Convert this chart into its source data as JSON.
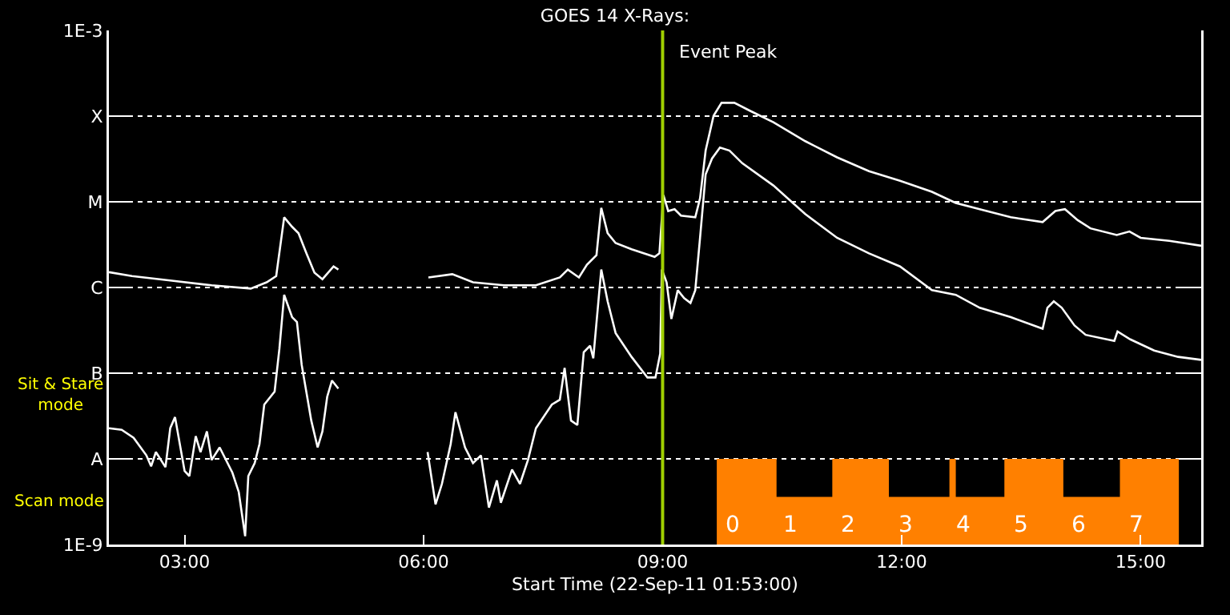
{
  "chart_data": {
    "type": "line",
    "title": "GOES 14 X-Rays:",
    "xlabel": "Start Time (22-Sep-11 01:53:00)",
    "log": true,
    "grid": "y",
    "line_style": "solid",
    "marker": "none",
    "xlim": [
      2.05,
      15.76
    ],
    "xticks": [
      {
        "value": 3,
        "label": "03:00"
      },
      {
        "value": 6,
        "label": "06:00"
      },
      {
        "value": 9,
        "label": "09:00"
      },
      {
        "value": 12,
        "label": "12:00"
      },
      {
        "value": 15,
        "label": "15:00"
      }
    ],
    "ylim": [
      1e-09,
      0.001
    ],
    "yticks": [
      {
        "value": 1e-09,
        "label": "1E-9"
      },
      {
        "value": 1e-08,
        "label": "A"
      },
      {
        "value": 1e-07,
        "label": "B"
      },
      {
        "value": 1e-06,
        "label": "C"
      },
      {
        "value": 1e-05,
        "label": "M"
      },
      {
        "value": 0.0001,
        "label": "X"
      },
      {
        "value": 0.001,
        "label": "1E-3"
      }
    ],
    "series": [
      {
        "color": "#ffffff",
        "x": [
          2.05,
          2.34,
          2.84,
          3.34,
          3.83,
          4.03,
          4.15,
          4.25,
          4.35,
          4.43,
          4.53,
          4.63,
          4.73,
          4.87,
          4.93,
          5.5,
          6.06,
          6.36,
          6.62,
          7.01,
          7.41,
          7.71,
          7.81,
          7.95,
          8.05,
          8.17,
          8.23,
          8.31,
          8.41,
          8.61,
          8.9,
          8.96,
          9.01,
          9.07,
          9.15,
          9.23,
          9.41,
          9.47,
          9.54,
          9.64,
          9.74,
          9.9,
          10.1,
          10.39,
          10.79,
          11.19,
          11.59,
          11.98,
          12.38,
          12.68,
          12.98,
          13.37,
          13.77,
          13.93,
          14.05,
          14.21,
          14.37,
          14.7,
          14.86,
          15.0,
          15.36,
          15.76
        ],
        "values": [
          1.51e-06,
          1.36e-06,
          1.2e-06,
          1.06e-06,
          9.7e-07,
          1.15e-06,
          1.36e-06,
          6.6e-06,
          5.1e-06,
          4.3e-06,
          2.5e-06,
          1.49e-06,
          1.25e-06,
          1.76e-06,
          1.62e-06,
          null,
          1.31e-06,
          1.43e-06,
          1.15e-06,
          1.06e-06,
          1.06e-06,
          1.31e-06,
          1.62e-06,
          1.31e-06,
          1.84e-06,
          2.38e-06,
          8.5e-06,
          4.3e-06,
          3.3e-06,
          2.8e-06,
          2.28e-06,
          2.5e-06,
          1.2e-05,
          7.8e-06,
          8.2e-06,
          6.9e-06,
          6.6e-06,
          1.1e-05,
          3.96e-05,
          0.000101,
          0.000143,
          0.000143,
          0.000115,
          8.5e-05,
          5.1e-05,
          3.3e-05,
          2.28e-05,
          1.76e-05,
          1.31e-05,
          9.7e-06,
          8.2e-06,
          6.6e-06,
          5.8e-06,
          7.8e-06,
          8.2e-06,
          6.1e-06,
          4.9e-06,
          4.1e-06,
          4.5e-06,
          3.8e-06,
          3.5e-06,
          3.07e-06
        ]
      },
      {
        "color": "#ffffff",
        "x": [
          2.05,
          2.21,
          2.36,
          2.52,
          2.58,
          2.64,
          2.76,
          2.82,
          2.88,
          3.0,
          3.06,
          3.14,
          3.2,
          3.28,
          3.34,
          3.44,
          3.6,
          3.68,
          3.76,
          3.8,
          3.88,
          3.94,
          4.0,
          4.13,
          4.19,
          4.25,
          4.35,
          4.41,
          4.47,
          4.59,
          4.67,
          4.73,
          4.79,
          4.85,
          4.93,
          5.5,
          6.05,
          6.15,
          6.23,
          6.34,
          6.4,
          6.52,
          6.62,
          6.72,
          6.82,
          6.92,
          6.97,
          7.11,
          7.21,
          7.31,
          7.41,
          7.61,
          7.71,
          7.77,
          7.85,
          7.93,
          8.01,
          8.09,
          8.13,
          8.23,
          8.31,
          8.41,
          8.61,
          8.81,
          8.91,
          8.97,
          8.99,
          9.05,
          9.11,
          9.19,
          9.27,
          9.35,
          9.41,
          9.47,
          9.54,
          9.62,
          9.72,
          9.84,
          10.0,
          10.39,
          10.79,
          11.19,
          11.59,
          11.98,
          12.38,
          12.68,
          12.98,
          13.37,
          13.77,
          13.83,
          13.91,
          14.01,
          14.17,
          14.31,
          14.67,
          14.71,
          14.87,
          15.17,
          15.47,
          15.76
        ],
        "values": [
          2.28e-08,
          2.18e-08,
          1.76e-08,
          1.1e-08,
          8.2e-09,
          1.2e-08,
          8e-09,
          2.28e-08,
          3.07e-08,
          7.2e-09,
          6.3e-09,
          1.84e-08,
          1.2e-08,
          2.09e-08,
          9.7e-09,
          1.36e-08,
          6.9e-09,
          4.1e-09,
          1.25e-09,
          6.3e-09,
          8.9e-09,
          1.49e-08,
          4.3e-08,
          6.1e-08,
          1.92e-07,
          8.2e-07,
          4.5e-07,
          3.96e-07,
          1.25e-07,
          2.8e-08,
          1.36e-08,
          2.09e-08,
          5.3e-08,
          8.2e-08,
          6.6e-08,
          null,
          1.2e-08,
          2.94e-09,
          5.1e-09,
          1.49e-08,
          3.5e-08,
          1.36e-08,
          8.9e-09,
          1.1e-08,
          2.7e-09,
          5.6e-09,
          3.08e-09,
          7.5e-09,
          5.1e-09,
          9.7e-09,
          2.28e-08,
          4.3e-08,
          4.9e-08,
          1.15e-07,
          2.8e-08,
          2.48e-08,
          1.76e-07,
          2.09e-07,
          1.49e-07,
          1.62e-06,
          6.9e-07,
          2.94e-07,
          1.55e-07,
          8.9e-08,
          8.9e-08,
          1.69e-07,
          1.62e-06,
          1.15e-06,
          4.3e-07,
          9.3e-07,
          7.5e-07,
          6.6e-07,
          9.3e-07,
          3.8e-06,
          2.09e-05,
          3.2e-05,
          4.3e-05,
          3.96e-05,
          2.82e-05,
          1.55e-05,
          7.2e-06,
          3.8e-06,
          2.5e-06,
          1.76e-06,
          9.3e-07,
          8.2e-07,
          5.8e-07,
          4.5e-07,
          3.3e-07,
          5.8e-07,
          6.9e-07,
          5.8e-07,
          3.6e-07,
          2.8e-07,
          2.38e-07,
          3.07e-07,
          2.48e-07,
          1.84e-07,
          1.55e-07,
          1.43e-07
        ]
      },
      {
        "type": "area",
        "color": "#ff8000",
        "x": [
          9.68,
          10.43,
          10.43,
          11.13,
          11.13,
          11.84,
          11.84,
          12.6,
          12.6,
          12.68,
          12.68,
          13.29,
          13.29,
          14.03,
          14.03,
          14.74,
          14.74,
          15.48
        ],
        "values": [
          1e-08,
          1e-08,
          3.6e-09,
          3.6e-09,
          1e-08,
          1e-08,
          3.6e-09,
          3.6e-09,
          1e-08,
          1e-08,
          3.6e-09,
          3.6e-09,
          1e-08,
          1e-08,
          3.6e-09,
          3.6e-09,
          1e-08,
          1e-08
        ]
      }
    ],
    "ref_lines": [
      {
        "axis": "x",
        "value": 9.0,
        "label": "Event Peak",
        "color": "#a0d000"
      }
    ],
    "annotations": [
      "Sit & Stare mode",
      "Scan mode",
      "0",
      "1",
      "2",
      "3",
      "4",
      "5",
      "6",
      "7"
    ]
  }
}
